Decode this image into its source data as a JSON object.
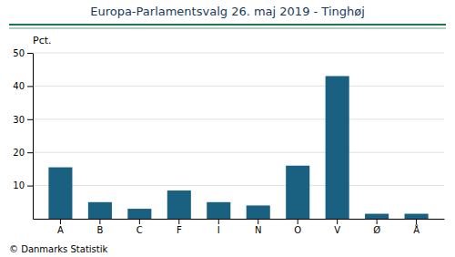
{
  "chart_data": {
    "type": "bar",
    "title": "Europa-Parlamentsvalg 26. maj 2019 - Tinghøj",
    "ylabel": "Pct.",
    "footer": "© Danmarks Statistik",
    "categories": [
      "A",
      "B",
      "C",
      "F",
      "I",
      "N",
      "O",
      "V",
      "Ø",
      "Å"
    ],
    "values": [
      15.5,
      5.0,
      3.0,
      8.5,
      5.0,
      4.0,
      16.0,
      43.0,
      1.5,
      1.5
    ],
    "color": "#1a6080",
    "ylim": [
      0,
      50
    ],
    "yticks": [
      10,
      20,
      30,
      40,
      50
    ],
    "grid": true
  }
}
